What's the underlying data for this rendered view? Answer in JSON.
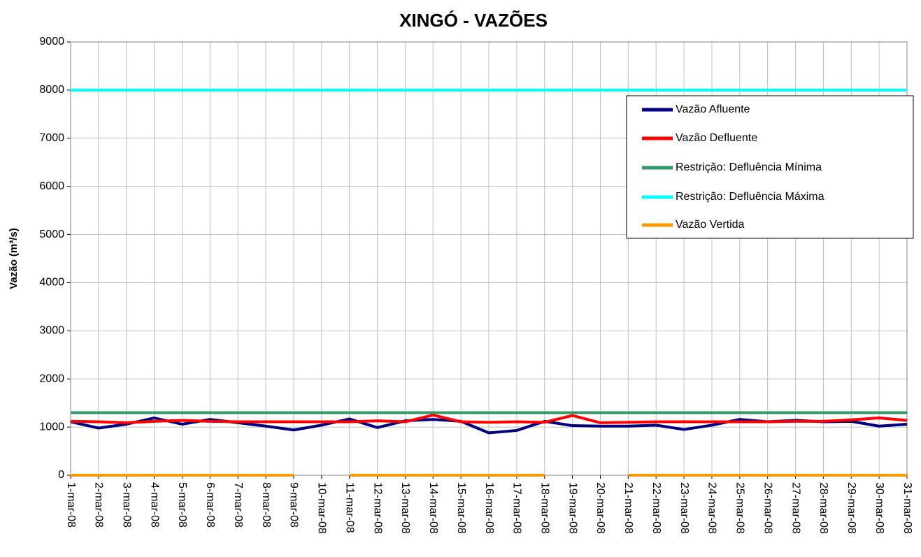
{
  "chart_data": {
    "type": "line",
    "title": "XINGÓ - VAZÕES",
    "y_label": "Vazão (m³/s)",
    "categories": [
      "1-mar-08",
      "2-mar-08",
      "3-mar-08",
      "4-mar-08",
      "5-mar-08",
      "6-mar-08",
      "7-mar-08",
      "8-mar-08",
      "9-mar-08",
      "10-mar-08",
      "11-mar-08",
      "12-mar-08",
      "13-mar-08",
      "14-mar-08",
      "15-mar-08",
      "16-mar-08",
      "17-mar-08",
      "18-mar-08",
      "19-mar-08",
      "20-mar-08",
      "21-mar-08",
      "22-mar-08",
      "23-mar-08",
      "24-mar-08",
      "25-mar-08",
      "26-mar-08",
      "27-mar-08",
      "28-mar-08",
      "29-mar-08",
      "30-mar-08",
      "31-mar-08"
    ],
    "series": [
      {
        "name": "Vazão Afluente",
        "color": "#000080",
        "values": [
          1110,
          980,
          1060,
          1190,
          1060,
          1160,
          1090,
          1020,
          940,
          1040,
          1170,
          990,
          1130,
          1160,
          1120,
          880,
          930,
          1120,
          1030,
          1020,
          1020,
          1040,
          950,
          1040,
          1160,
          1110,
          1140,
          1110,
          1120,
          1020,
          1060
        ]
      },
      {
        "name": "Vazão Defluente",
        "color": "#ff0000",
        "values": [
          1120,
          1110,
          1090,
          1120,
          1140,
          1120,
          1110,
          1110,
          1110,
          1110,
          1110,
          1130,
          1110,
          1250,
          1110,
          1100,
          1110,
          1100,
          1240,
          1090,
          1100,
          1110,
          1110,
          1110,
          1110,
          1110,
          1120,
          1120,
          1150,
          1190,
          1140
        ]
      },
      {
        "name": "Restrição: Defluência Mínima",
        "color": "#339966",
        "values": [
          1300,
          1300,
          1300,
          1300,
          1300,
          1300,
          1300,
          1300,
          1300,
          1300,
          1300,
          1300,
          1300,
          1300,
          1300,
          1300,
          1300,
          1300,
          1300,
          1300,
          1300,
          1300,
          1300,
          1300,
          1300,
          1300,
          1300,
          1300,
          1300,
          1300,
          1300
        ]
      },
      {
        "name": "Restrição: Defluência Máxima",
        "color": "#00ffff",
        "values": [
          8000,
          8000,
          8000,
          8000,
          8000,
          8000,
          8000,
          8000,
          8000,
          8000,
          8000,
          8000,
          8000,
          8000,
          8000,
          8000,
          8000,
          8000,
          8000,
          8000,
          8000,
          8000,
          8000,
          8000,
          8000,
          8000,
          8000,
          8000,
          8000,
          8000,
          8000
        ]
      },
      {
        "name": "Vazão Vertida",
        "color": "#ff9900",
        "values": [
          0,
          0,
          0,
          0,
          0,
          0,
          0,
          0,
          0,
          null,
          0,
          0,
          0,
          0,
          0,
          0,
          0,
          0,
          null,
          null,
          0,
          0,
          0,
          0,
          0,
          0,
          0,
          0,
          0,
          0,
          0
        ]
      }
    ],
    "ylim": [
      0,
      9000
    ],
    "yticks": [
      0,
      1000,
      2000,
      3000,
      4000,
      5000,
      6000,
      7000,
      8000,
      9000
    ],
    "grid": true
  }
}
